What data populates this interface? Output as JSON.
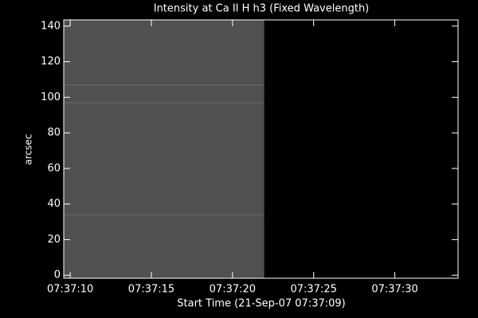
{
  "chart_data": {
    "type": "image",
    "title": "Intensity at Ca II H h3 (Fixed Wavelength)",
    "xlabel": "Start Time (21-Sep-07 07:37:09)",
    "ylabel": "arcsec",
    "xlim": [
      9.6,
      33.9
    ],
    "ylim": [
      -1.7,
      143.5
    ],
    "xticks": [
      {
        "value": 10,
        "label": "07:37:10"
      },
      {
        "value": 15,
        "label": "07:37:15"
      },
      {
        "value": 20,
        "label": "07:37:20"
      },
      {
        "value": 25,
        "label": "07:37:25"
      },
      {
        "value": 30,
        "label": "07:37:30"
      }
    ],
    "yticks": [
      0,
      20,
      40,
      60,
      80,
      100,
      120,
      140
    ],
    "image_x": [
      9.6,
      21.95
    ],
    "image_y": [
      -1.7,
      143.5
    ],
    "color": "#505050",
    "streaks": [
      97,
      107,
      34
    ],
    "streak_color": "#7a7a7a"
  }
}
